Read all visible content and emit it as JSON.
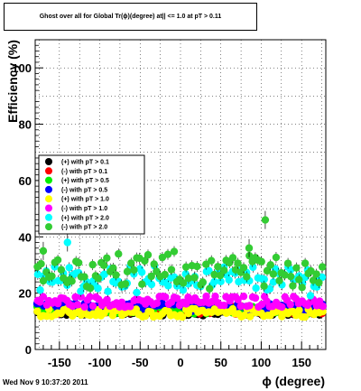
{
  "chart_data": {
    "type": "scatter",
    "title": "Ghost over all for Global Tr(ϕ)(degree) at|| <= 1.0 at pT > 0.11",
    "xlabel": "ϕ (degree)",
    "ylabel": "Efficiency (%)",
    "xlim": [
      -180,
      180
    ],
    "ylim": [
      0,
      110
    ],
    "x_ticks": [
      -150,
      -100,
      -50,
      0,
      50,
      100,
      150
    ],
    "y_ticks": [
      0,
      20,
      40,
      60,
      80,
      100
    ],
    "grid": true,
    "legend_position": "left",
    "timestamp": "Wed Nov  9 10:37:20 2011",
    "series": [
      {
        "name": "(+) with pT > 0.1",
        "color": "#000000",
        "center": 13,
        "amp": 1.0
      },
      {
        "name": "(-) with pT > 0.1",
        "color": "#ff0000",
        "center": 14,
        "amp": 1.5
      },
      {
        "name": "(+) with pT > 0.5",
        "color": "#00ee00",
        "center": 14,
        "amp": 1.5
      },
      {
        "name": "(-) with pT > 0.5",
        "color": "#0000ff",
        "center": 15,
        "amp": 1.5
      },
      {
        "name": "(+) with pT > 1.0",
        "color": "#ffff00",
        "center": 13,
        "amp": 1.5
      },
      {
        "name": "(-) with pT > 1.0",
        "color": "#ff00ff",
        "center": 17,
        "amp": 2.0
      },
      {
        "name": "(+) with pT > 2.0",
        "color": "#00ffff",
        "center": 25,
        "amp": 4.0
      },
      {
        "name": "(-) with pT > 2.0",
        "color": "#33cc33",
        "center": 28,
        "amp": 5.0
      }
    ],
    "notable_points": [
      {
        "series": 7,
        "x": 105,
        "y": 46
      },
      {
        "series": 7,
        "x": -170,
        "y": 35
      },
      {
        "series": 6,
        "x": -140,
        "y": 38
      },
      {
        "series": 7,
        "x": 85,
        "y": 36
      }
    ]
  }
}
